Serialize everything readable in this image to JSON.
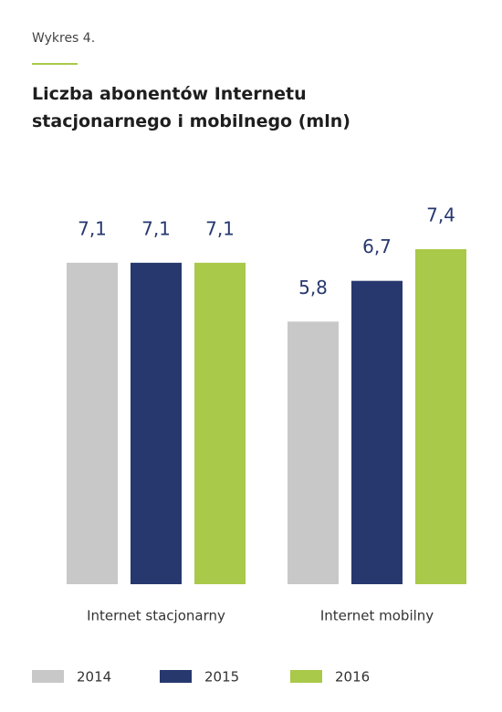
{
  "chart_data": {
    "type": "bar",
    "label": "Wykres 4.",
    "title": "Liczba abonentów Internetu stacjonarnego i mobilnego (mln)",
    "categories": [
      "Internet stacjonarny",
      "Internet mobilny"
    ],
    "series": [
      {
        "name": "2014",
        "color": "#c8c8c8",
        "values": [
          7.1,
          5.8
        ],
        "value_labels": [
          "7,1",
          "5,8"
        ]
      },
      {
        "name": "2015",
        "color": "#27386f",
        "values": [
          7.1,
          6.7
        ],
        "value_labels": [
          "7,1",
          "6,7"
        ]
      },
      {
        "name": "2016",
        "color": "#a9c94a",
        "values": [
          7.1,
          7.4
        ],
        "value_labels": [
          "7,1",
          "7,4"
        ]
      }
    ],
    "legend": "bottom"
  }
}
